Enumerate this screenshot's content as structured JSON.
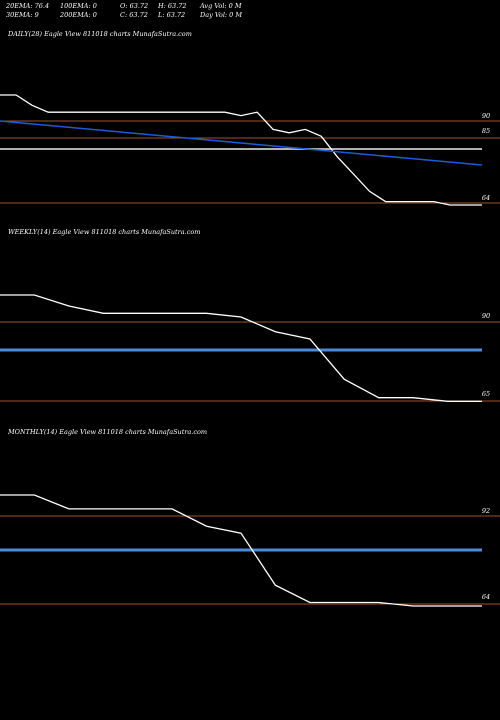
{
  "header": {
    "row1": [
      "20EMA: 76.4",
      "100EMA: 0",
      "O: 63.72",
      "H: 63.72",
      "Avg Vol: 0  M"
    ],
    "row2": [
      "30EMA: 9",
      "200EMA: 0",
      "C: 63.72",
      "L: 63.72",
      "Day Vol: 0  M"
    ]
  },
  "colors": {
    "background": "#000000",
    "price": "#ffffff",
    "ema": "#1e5bd8",
    "level": "#a0522d",
    "band": "#4a8ae0"
  },
  "chart_data": [
    {
      "type": "line",
      "title": "DAILY(28) Eagle  View  811018 charts MunafaSutra.com",
      "ylevels": [
        90,
        85,
        64
      ],
      "series": [
        {
          "values": [
            95,
            95,
            92,
            90,
            90,
            90,
            90,
            90,
            90,
            90,
            90,
            90,
            90,
            90,
            90,
            89,
            90,
            85,
            84,
            85,
            83,
            77,
            72,
            67,
            64,
            64,
            64,
            64,
            63,
            63,
            63
          ]
        },
        {
          "values": [
            90,
            89.4,
            88.8,
            88.2,
            87.6,
            87,
            86.4,
            85.8,
            85.2,
            84.6,
            84,
            83.4,
            82.8,
            82.2,
            81.6,
            81,
            80.4
          ]
        }
      ]
    },
    {
      "type": "line",
      "title": "WEEKLY(14) Eagle  View  811018 charts MunafaSutra.com",
      "ylevels": [
        90,
        65
      ],
      "series": [
        {
          "values": [
            95,
            95,
            92,
            90,
            90,
            90,
            90,
            89,
            85,
            83,
            72,
            67,
            67,
            66,
            66
          ]
        }
      ]
    },
    {
      "type": "line",
      "title": "MONTHLY(14) Eagle  View  811018 charts MunafaSutra.com",
      "ylevels": [
        92,
        64
      ],
      "series": [
        {
          "values": [
            96,
            96,
            92,
            92,
            92,
            92,
            87,
            85,
            70,
            65,
            65,
            65,
            64,
            64,
            64
          ]
        }
      ]
    }
  ]
}
